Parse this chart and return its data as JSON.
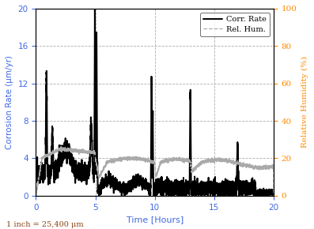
{
  "xlabel": "Time [Hours]",
  "ylabel_left": "Corrosion Rate (μm/yr)",
  "ylabel_right": "Relative Humidity (%)",
  "footnote": "1 inch = 25,400 μm",
  "xlim": [
    0,
    20
  ],
  "ylim_left": [
    0,
    20
  ],
  "ylim_right": [
    0,
    100
  ],
  "xticks": [
    0,
    5,
    10,
    15,
    20
  ],
  "yticks_left": [
    0,
    4,
    8,
    12,
    16,
    20
  ],
  "yticks_right": [
    0,
    20,
    40,
    60,
    80,
    100
  ],
  "legend_entries": [
    "Corr. Rate",
    "Rel. Hum."
  ],
  "corr_rate_color": "#000000",
  "rel_hum_color": "#aaaaaa",
  "grid_color": "#999999",
  "axis_label_color": "#4169E1",
  "tick_color": "#4169E1",
  "rh_ylabel_color": "#FF8C00",
  "rh_tick_color": "#FF8C00",
  "footnote_color": "#8B4513",
  "background_color": "#ffffff"
}
